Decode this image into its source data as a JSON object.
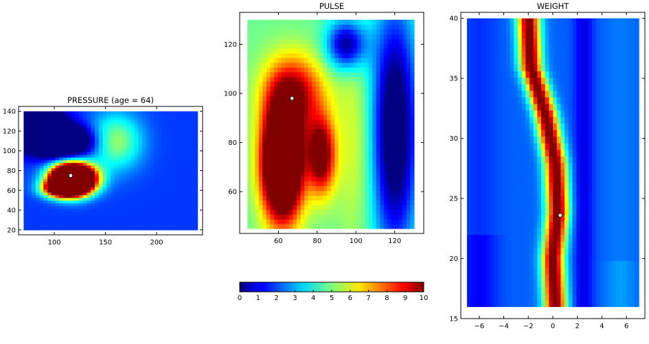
{
  "chart_data": [
    {
      "type": "heatmap",
      "title": "PRESSURE (age = 64)",
      "xlim": [
        65,
        245
      ],
      "ylim": [
        15,
        145
      ],
      "extent": {
        "x": [
          70,
          240
        ],
        "y": [
          20,
          140
        ]
      },
      "xticks": [
        100,
        150,
        200
      ],
      "yticks": [
        20,
        40,
        60,
        80,
        100,
        120,
        140
      ],
      "marker": {
        "x": 116,
        "y": 75
      },
      "grid": false,
      "blobs": [
        {
          "x": 118,
          "y": 72,
          "rx": 20,
          "ry": 14,
          "v": 6.5
        },
        {
          "x": 108,
          "y": 62,
          "rx": 18,
          "ry": 8,
          "v": 2.5
        },
        {
          "x": 160,
          "y": 110,
          "rx": 25,
          "ry": 28,
          "v": 0.9
        },
        {
          "x": 105,
          "y": 110,
          "rx": 30,
          "ry": 15,
          "v": -1.8
        },
        {
          "x": 80,
          "y": 130,
          "rx": 25,
          "ry": 20,
          "v": -1.5
        }
      ],
      "base": 1.8
    },
    {
      "type": "heatmap",
      "title": "PULSE",
      "xlim": [
        40,
        135
      ],
      "ylim": [
        43,
        133
      ],
      "extent": {
        "x": [
          44,
          130
        ],
        "y": [
          45,
          130
        ]
      },
      "xticks": [
        60,
        80,
        100,
        120
      ],
      "yticks": [
        60,
        80,
        100,
        120
      ],
      "marker": {
        "x": 67,
        "y": 98
      },
      "grid": false,
      "blobs": [
        {
          "x": 62,
          "y": 72,
          "rx": 10,
          "ry": 22,
          "v": 3.2
        },
        {
          "x": 82,
          "y": 75,
          "rx": 7,
          "ry": 15,
          "v": 1.6
        },
        {
          "x": 68,
          "y": 100,
          "rx": 15,
          "ry": 15,
          "v": 1.2
        },
        {
          "x": 100,
          "y": 80,
          "rx": 10,
          "ry": 40,
          "v": 0.3
        },
        {
          "x": 120,
          "y": 85,
          "rx": 12,
          "ry": 50,
          "v": -1.5
        },
        {
          "x": 95,
          "y": 120,
          "rx": 10,
          "ry": 10,
          "v": -1.2
        }
      ],
      "base": 4.8
    },
    {
      "type": "heatmap",
      "title": "WEIGHT",
      "xlim": [
        -7.5,
        7.5
      ],
      "ylim": [
        15,
        40.5
      ],
      "extent": {
        "x": [
          -7,
          7
        ],
        "y": [
          16,
          40
        ]
      },
      "xticks": [
        -6,
        -4,
        -2,
        0,
        2,
        4,
        6
      ],
      "yticks": [
        15,
        20,
        25,
        30,
        35,
        40
      ],
      "marker": {
        "x": 0.6,
        "y": 23.6
      },
      "grid": false,
      "ridge": [
        [
          16,
          0.2
        ],
        [
          20,
          0.0
        ],
        [
          24,
          0.4
        ],
        [
          28,
          0.2
        ],
        [
          32,
          -0.6
        ],
        [
          36,
          -1.8
        ],
        [
          40,
          -2.0
        ]
      ],
      "ridge_width": 0.9,
      "ridge_peak": 8.2,
      "base": 2.2
    }
  ],
  "colorbar": {
    "min": 0,
    "max": 10,
    "ticks": [
      "0",
      "1",
      "2",
      "3",
      "4",
      "5",
      "6",
      "7",
      "8",
      "9",
      "10"
    ]
  }
}
